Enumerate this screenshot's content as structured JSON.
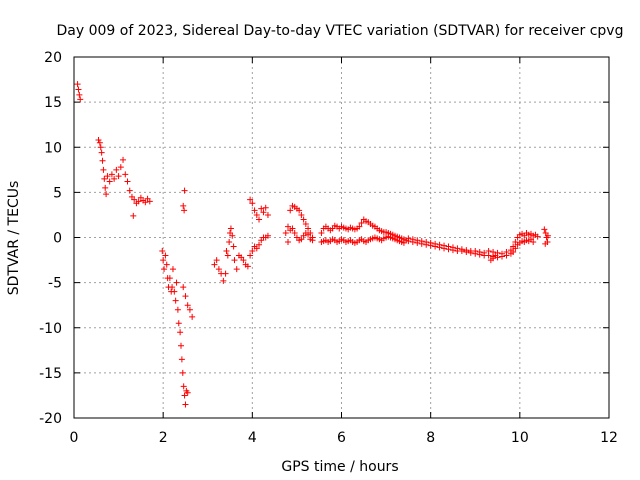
{
  "chart_data": {
    "type": "scatter",
    "title": "Day 009 of 2023, Sidereal Day-to-day VTEC variation (SDTVAR) for receiver cpvg",
    "xlabel": "GPS time / hours",
    "ylabel": "SDTVAR / TECUs",
    "xlim": [
      0,
      12
    ],
    "ylim": [
      -20,
      20
    ],
    "xticks": [
      "0",
      "2",
      "4",
      "6",
      "8",
      "10",
      "12"
    ],
    "yticks": [
      "20",
      "15",
      "10",
      "5",
      "0",
      "-5",
      "-10",
      "-15",
      "-20"
    ],
    "xtick_values": [
      0,
      2,
      4,
      6,
      8,
      10,
      12
    ],
    "ytick_values": [
      20,
      15,
      10,
      5,
      0,
      -5,
      -10,
      -15,
      -20
    ],
    "grid": true,
    "marker": "+",
    "color": "#ff0000",
    "series": [
      {
        "name": "SDTVAR",
        "points": [
          [
            0.08,
            17.0
          ],
          [
            0.1,
            16.4
          ],
          [
            0.12,
            15.8
          ],
          [
            0.14,
            15.3
          ],
          [
            0.55,
            10.8
          ],
          [
            0.58,
            10.5
          ],
          [
            0.6,
            10.0
          ],
          [
            0.62,
            9.4
          ],
          [
            0.64,
            8.5
          ],
          [
            0.66,
            7.5
          ],
          [
            0.68,
            6.5
          ],
          [
            0.7,
            5.5
          ],
          [
            0.72,
            4.8
          ],
          [
            0.75,
            6.8
          ],
          [
            0.8,
            6.2
          ],
          [
            0.85,
            7.0
          ],
          [
            0.9,
            6.5
          ],
          [
            0.95,
            7.5
          ],
          [
            1.0,
            6.8
          ],
          [
            1.05,
            7.8
          ],
          [
            1.1,
            8.6
          ],
          [
            1.15,
            7.0
          ],
          [
            1.2,
            6.2
          ],
          [
            1.25,
            5.2
          ],
          [
            1.3,
            4.5
          ],
          [
            1.35,
            4.2
          ],
          [
            1.4,
            3.8
          ],
          [
            1.33,
            2.4
          ],
          [
            1.45,
            4.0
          ],
          [
            1.5,
            4.4
          ],
          [
            1.55,
            4.1
          ],
          [
            1.6,
            3.9
          ],
          [
            1.65,
            4.3
          ],
          [
            1.7,
            4.0
          ],
          [
            1.98,
            -1.5
          ],
          [
            2.0,
            -2.5
          ],
          [
            2.02,
            -3.5
          ],
          [
            2.05,
            -2.0
          ],
          [
            2.08,
            -3.0
          ],
          [
            2.1,
            -4.5
          ],
          [
            2.12,
            -5.5
          ],
          [
            2.15,
            -4.5
          ],
          [
            2.18,
            -6.0
          ],
          [
            2.2,
            -5.5
          ],
          [
            2.22,
            -3.5
          ],
          [
            2.25,
            -6.0
          ],
          [
            2.28,
            -7.0
          ],
          [
            2.3,
            -5.0
          ],
          [
            2.33,
            -8.0
          ],
          [
            2.35,
            -9.5
          ],
          [
            2.38,
            -10.5
          ],
          [
            2.4,
            -12.0
          ],
          [
            2.42,
            -13.5
          ],
          [
            2.44,
            -15.0
          ],
          [
            2.46,
            -16.5
          ],
          [
            2.48,
            -17.5
          ],
          [
            2.5,
            -18.5
          ],
          [
            2.52,
            -17.0
          ],
          [
            2.55,
            -17.2
          ],
          [
            2.48,
            5.2
          ],
          [
            2.47,
            3.0
          ],
          [
            2.45,
            3.5
          ],
          [
            2.45,
            -5.5
          ],
          [
            2.5,
            -6.5
          ],
          [
            2.55,
            -7.5
          ],
          [
            2.6,
            -8.0
          ],
          [
            2.65,
            -8.8
          ],
          [
            3.15,
            -3.0
          ],
          [
            3.2,
            -2.5
          ],
          [
            3.25,
            -3.5
          ],
          [
            3.3,
            -4.0
          ],
          [
            3.35,
            -4.8
          ],
          [
            3.4,
            -4.0
          ],
          [
            3.42,
            -1.5
          ],
          [
            3.45,
            -2.0
          ],
          [
            3.48,
            -0.5
          ],
          [
            3.5,
            0.5
          ],
          [
            3.52,
            1.0
          ],
          [
            3.55,
            0.2
          ],
          [
            3.58,
            -1.0
          ],
          [
            3.6,
            -2.5
          ],
          [
            3.65,
            -3.5
          ],
          [
            3.7,
            -2.0
          ],
          [
            3.75,
            -2.2
          ],
          [
            3.8,
            -2.5
          ],
          [
            3.85,
            -3.0
          ],
          [
            3.9,
            -3.2
          ],
          [
            3.95,
            -2.0
          ],
          [
            4.0,
            -1.5
          ],
          [
            4.05,
            -1.0
          ],
          [
            4.1,
            -1.2
          ],
          [
            4.15,
            -0.8
          ],
          [
            4.2,
            -0.3
          ],
          [
            4.25,
            0.0
          ],
          [
            4.3,
            0.0
          ],
          [
            4.35,
            0.2
          ],
          [
            3.95,
            4.2
          ],
          [
            4.0,
            3.8
          ],
          [
            4.05,
            3.0
          ],
          [
            4.1,
            2.5
          ],
          [
            4.15,
            2.0
          ],
          [
            4.2,
            3.2
          ],
          [
            4.25,
            2.8
          ],
          [
            4.3,
            3.3
          ],
          [
            4.35,
            2.5
          ],
          [
            4.75,
            0.5
          ],
          [
            4.8,
            1.2
          ],
          [
            4.85,
            3.0
          ],
          [
            4.9,
            3.5
          ],
          [
            4.95,
            3.4
          ],
          [
            5.0,
            3.2
          ],
          [
            5.05,
            3.0
          ],
          [
            5.1,
            2.5
          ],
          [
            5.15,
            2.0
          ],
          [
            5.2,
            1.5
          ],
          [
            5.25,
            1.0
          ],
          [
            5.3,
            0.5
          ],
          [
            5.35,
            0.0
          ],
          [
            4.8,
            -0.5
          ],
          [
            4.85,
            0.8
          ],
          [
            4.9,
            1.0
          ],
          [
            4.95,
            0.5
          ],
          [
            5.0,
            0.0
          ],
          [
            5.05,
            -0.3
          ],
          [
            5.1,
            -0.2
          ],
          [
            5.15,
            0.2
          ],
          [
            5.2,
            0.5
          ],
          [
            5.25,
            0.3
          ],
          [
            5.3,
            -0.2
          ],
          [
            5.35,
            -0.3
          ],
          [
            5.55,
            0.5
          ],
          [
            5.6,
            1.0
          ],
          [
            5.65,
            1.2
          ],
          [
            5.7,
            1.0
          ],
          [
            5.75,
            0.8
          ],
          [
            5.8,
            1.0
          ],
          [
            5.85,
            1.3
          ],
          [
            5.9,
            1.2
          ],
          [
            5.95,
            1.0
          ],
          [
            6.0,
            1.2
          ],
          [
            6.05,
            1.1
          ],
          [
            6.1,
            1.0
          ],
          [
            6.15,
            0.9
          ],
          [
            6.2,
            1.1
          ],
          [
            6.25,
            1.0
          ],
          [
            6.3,
            0.9
          ],
          [
            6.35,
            1.0
          ],
          [
            6.4,
            1.2
          ],
          [
            6.45,
            1.6
          ],
          [
            6.5,
            2.0
          ],
          [
            6.55,
            1.8
          ],
          [
            6.6,
            1.7
          ],
          [
            6.65,
            1.5
          ],
          [
            6.7,
            1.3
          ],
          [
            6.75,
            1.2
          ],
          [
            6.8,
            1.0
          ],
          [
            6.85,
            0.8
          ],
          [
            6.9,
            0.7
          ],
          [
            6.95,
            0.6
          ],
          [
            7.0,
            0.6
          ],
          [
            7.05,
            0.5
          ],
          [
            7.1,
            0.4
          ],
          [
            7.15,
            0.3
          ],
          [
            7.2,
            0.2
          ],
          [
            7.25,
            0.1
          ],
          [
            7.3,
            0.0
          ],
          [
            7.35,
            -0.1
          ],
          [
            7.4,
            -0.2
          ],
          [
            7.45,
            -0.3
          ],
          [
            5.55,
            -0.5
          ],
          [
            5.6,
            -0.4
          ],
          [
            5.65,
            -0.3
          ],
          [
            5.7,
            -0.5
          ],
          [
            5.75,
            -0.4
          ],
          [
            5.8,
            -0.2
          ],
          [
            5.85,
            -0.3
          ],
          [
            5.9,
            -0.5
          ],
          [
            5.95,
            -0.4
          ],
          [
            6.0,
            -0.2
          ],
          [
            6.05,
            -0.3
          ],
          [
            6.1,
            -0.5
          ],
          [
            6.15,
            -0.4
          ],
          [
            6.2,
            -0.3
          ],
          [
            6.25,
            -0.5
          ],
          [
            6.3,
            -0.6
          ],
          [
            6.35,
            -0.5
          ],
          [
            6.4,
            -0.3
          ],
          [
            6.45,
            -0.2
          ],
          [
            6.5,
            -0.4
          ],
          [
            6.55,
            -0.5
          ],
          [
            6.6,
            -0.3
          ],
          [
            6.65,
            -0.2
          ],
          [
            6.7,
            -0.1
          ],
          [
            6.75,
            0.0
          ],
          [
            6.8,
            -0.1
          ],
          [
            6.85,
            -0.2
          ],
          [
            6.9,
            -0.3
          ],
          [
            6.95,
            -0.1
          ],
          [
            7.0,
            0.0
          ],
          [
            7.05,
            0.1
          ],
          [
            7.1,
            0.0
          ],
          [
            7.15,
            -0.1
          ],
          [
            7.2,
            -0.2
          ],
          [
            7.25,
            -0.3
          ],
          [
            7.3,
            -0.4
          ],
          [
            7.35,
            -0.5
          ],
          [
            7.4,
            -0.6
          ],
          [
            7.5,
            -0.4
          ],
          [
            7.6,
            -0.5
          ],
          [
            7.7,
            -0.6
          ],
          [
            7.8,
            -0.7
          ],
          [
            7.9,
            -0.8
          ],
          [
            8.0,
            -0.9
          ],
          [
            8.1,
            -1.0
          ],
          [
            8.2,
            -1.1
          ],
          [
            8.3,
            -1.2
          ],
          [
            8.4,
            -1.3
          ],
          [
            8.5,
            -1.4
          ],
          [
            8.6,
            -1.5
          ],
          [
            8.7,
            -1.5
          ],
          [
            8.8,
            -1.6
          ],
          [
            8.9,
            -1.7
          ],
          [
            9.0,
            -1.8
          ],
          [
            9.1,
            -1.9
          ],
          [
            9.2,
            -2.0
          ],
          [
            9.3,
            -2.0
          ],
          [
            9.4,
            -2.1
          ],
          [
            9.5,
            -2.2
          ],
          [
            9.6,
            -2.1
          ],
          [
            9.7,
            -2.0
          ],
          [
            9.8,
            -1.8
          ],
          [
            7.5,
            -0.1
          ],
          [
            7.6,
            -0.2
          ],
          [
            7.7,
            -0.3
          ],
          [
            7.8,
            -0.4
          ],
          [
            7.9,
            -0.5
          ],
          [
            8.0,
            -0.6
          ],
          [
            8.1,
            -0.7
          ],
          [
            8.2,
            -0.8
          ],
          [
            8.3,
            -0.9
          ],
          [
            8.4,
            -1.0
          ],
          [
            8.5,
            -1.1
          ],
          [
            8.6,
            -1.2
          ],
          [
            8.7,
            -1.3
          ],
          [
            8.8,
            -1.4
          ],
          [
            8.9,
            -1.5
          ],
          [
            9.0,
            -1.5
          ],
          [
            9.1,
            -1.6
          ],
          [
            9.2,
            -1.7
          ],
          [
            9.3,
            -1.5
          ],
          [
            9.4,
            -1.6
          ],
          [
            9.5,
            -1.7
          ],
          [
            9.6,
            -1.8
          ],
          [
            9.7,
            -1.6
          ],
          [
            9.8,
            -1.4
          ],
          [
            9.35,
            -2.5
          ],
          [
            9.4,
            -2.3
          ],
          [
            9.45,
            -2.0
          ],
          [
            9.85,
            -1.6
          ],
          [
            9.9,
            -1.2
          ],
          [
            9.95,
            -0.8
          ],
          [
            10.0,
            -0.6
          ],
          [
            10.05,
            -0.4
          ],
          [
            10.1,
            -0.5
          ],
          [
            10.15,
            -0.3
          ],
          [
            10.2,
            -0.4
          ],
          [
            10.25,
            -0.2
          ],
          [
            10.3,
            -0.5
          ],
          [
            9.85,
            -1.0
          ],
          [
            9.9,
            -0.5
          ],
          [
            9.95,
            0.0
          ],
          [
            10.0,
            0.3
          ],
          [
            10.05,
            0.4
          ],
          [
            10.1,
            0.2
          ],
          [
            10.15,
            0.5
          ],
          [
            10.2,
            0.3
          ],
          [
            10.25,
            0.4
          ],
          [
            10.3,
            0.2
          ],
          [
            10.35,
            0.3
          ],
          [
            10.4,
            0.1
          ],
          [
            10.55,
            0.9
          ],
          [
            10.58,
            0.5
          ],
          [
            10.6,
            0.0
          ],
          [
            10.62,
            -0.5
          ],
          [
            10.57,
            -0.7
          ],
          [
            10.63,
            0.2
          ]
        ]
      }
    ]
  }
}
